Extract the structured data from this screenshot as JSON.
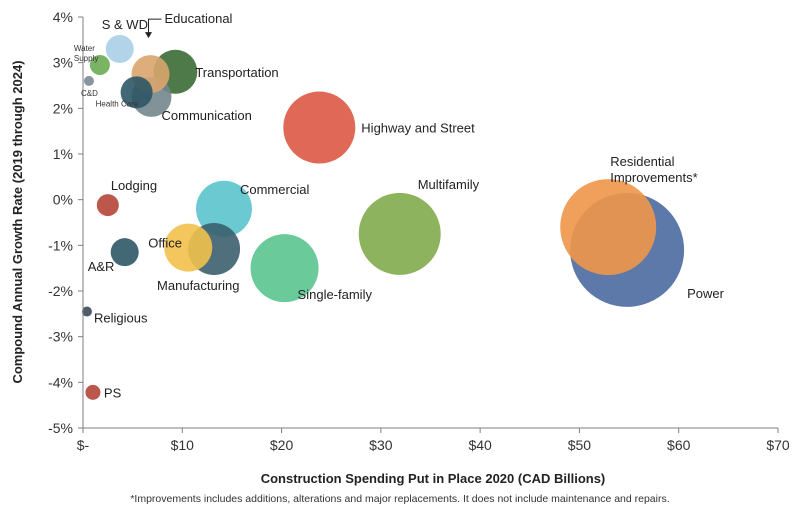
{
  "chart_data": {
    "type": "bubble",
    "xlabel": "Construction Spending Put in Place 2020 (CAD Billions)",
    "ylabel": "Compound Annual Growth Rate (2019 through 2024)",
    "xlim": [
      0,
      70
    ],
    "ylim": [
      -5,
      4
    ],
    "x_ticks": [
      0,
      10,
      20,
      30,
      40,
      50,
      60,
      70
    ],
    "x_tick_labels": [
      "$-",
      "$10",
      "$20",
      "$30",
      "$40",
      "$50",
      "$60",
      "$70"
    ],
    "y_ticks": [
      4,
      3,
      2,
      1,
      0,
      -1,
      -2,
      -3,
      -4,
      -5
    ],
    "y_tick_labels": [
      "4%",
      "3%",
      "2%",
      "1%",
      "0%",
      "-1%",
      "-2%",
      "-3%",
      "-4%",
      "-5%"
    ],
    "grid": false,
    "bubble_size_encodes": "spending",
    "points": [
      {
        "name": "S & WD",
        "x": 3.7,
        "y": 3.3,
        "color": "#a9cfe6"
      },
      {
        "name": "Water Supply",
        "x": 1.7,
        "y": 2.95,
        "color": "#6aab52"
      },
      {
        "name": "C&D",
        "x": 0.6,
        "y": 2.6,
        "color": "#7b8a93"
      },
      {
        "name": "Health Care",
        "x": 5.4,
        "y": 2.35,
        "color": "#2d5666"
      },
      {
        "name": "Educational",
        "x": 6.8,
        "y": 2.75,
        "color": "#d9a56e"
      },
      {
        "name": "Transportation",
        "x": 9.3,
        "y": 2.8,
        "color": "#3b6b35"
      },
      {
        "name": "Communication",
        "x": 6.9,
        "y": 2.25,
        "color": "#73868e"
      },
      {
        "name": "Highway and Street",
        "x": 23.8,
        "y": 1.58,
        "color": "#dd5844"
      },
      {
        "name": "Residential Improvements*",
        "x": 52.9,
        "y": -0.6,
        "color": "#ee9648"
      },
      {
        "name": "Power",
        "x": 54.8,
        "y": -1.1,
        "color": "#4a6aa1"
      },
      {
        "name": "Multifamily",
        "x": 31.9,
        "y": -0.75,
        "color": "#82ab4d"
      },
      {
        "name": "Commercial",
        "x": 14.2,
        "y": -0.2,
        "color": "#5bc4cc"
      },
      {
        "name": "Lodging",
        "x": 2.5,
        "y": -0.12,
        "color": "#b54537"
      },
      {
        "name": "Office",
        "x": 10.6,
        "y": -1.05,
        "color": "#f2c14c"
      },
      {
        "name": "Manufacturing",
        "x": 13.2,
        "y": -1.08,
        "color": "#3b5f6d"
      },
      {
        "name": "Single-family",
        "x": 20.3,
        "y": -1.5,
        "color": "#5bc48e"
      },
      {
        "name": "A&R",
        "x": 4.2,
        "y": -1.15,
        "color": "#2d5666"
      },
      {
        "name": "Religious",
        "x": 0.4,
        "y": -2.45,
        "color": "#3e4a5a"
      },
      {
        "name": "PS",
        "x": 1.0,
        "y": -4.22,
        "color": "#b54537"
      }
    ]
  },
  "footnote": "*Improvements includes additions, alterations and major replacements. It does not include maintenance and repairs."
}
